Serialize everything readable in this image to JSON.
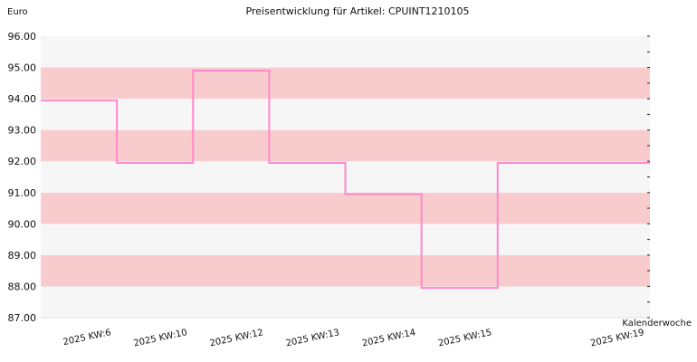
{
  "chart_data": {
    "type": "line",
    "title": "Preisentwicklung für Artikel: CPUINT1210105",
    "ylabel": "Euro",
    "xlabel": "Kalenderwoche",
    "ylim": [
      87.0,
      96.0
    ],
    "yticks": [
      "87.00",
      "88.00",
      "89.00",
      "90.00",
      "91.00",
      "92.00",
      "93.00",
      "94.00",
      "95.00",
      "96.00"
    ],
    "categories": [
      "2025 KW:6",
      "2025 KW:10",
      "2025 KW:12",
      "2025 KW:13",
      "2025 KW:14",
      "2025 KW:15",
      "2025 KW:19"
    ],
    "series": [
      {
        "values": [
          93.95,
          91.95,
          94.9,
          91.95,
          90.95,
          87.95,
          91.95
        ]
      }
    ],
    "step": true,
    "grid": true,
    "colors": {
      "line": "#ff88cc",
      "band_a": "#f8cccc",
      "band_b": "#f6f6f6"
    }
  }
}
